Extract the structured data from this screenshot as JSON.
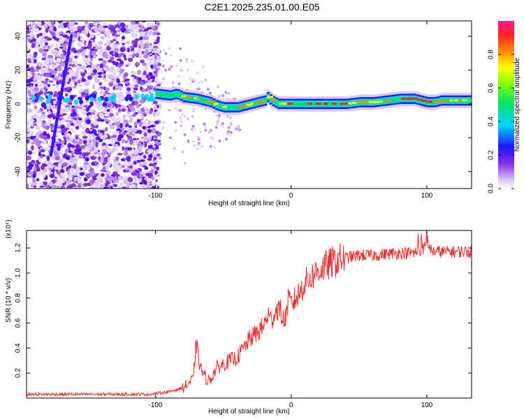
{
  "title": "C2E1.2025.235.01.00.E05",
  "chart_data": [
    {
      "type": "heatmap",
      "xlabel": "Height of straight line (km)",
      "ylabel": "Frequency (Hz)",
      "xlim": [
        -195,
        133
      ],
      "ylim": [
        -50,
        49
      ],
      "xticks": [
        -100,
        0,
        100
      ],
      "yticks": [
        40,
        20,
        0,
        -20,
        -40
      ],
      "xtick_labels": [
        "-100",
        "0",
        "100"
      ],
      "ytick_labels": [
        "40",
        "20",
        "0",
        "-20",
        "-40"
      ],
      "colorbar": {
        "label": "Normalized spectral amplitude",
        "range": [
          0,
          1
        ],
        "ticks": [
          "0.0",
          "0.2",
          "0.4",
          "0.6",
          "0.8"
        ],
        "tick_values": [
          0.0,
          0.2,
          0.4,
          0.6,
          0.8
        ]
      },
      "ridge": {
        "x": [
          -100,
          -90,
          -85,
          -80,
          -70,
          -60,
          -55,
          -50,
          -40,
          -30,
          -20,
          -18,
          -15,
          -10,
          -5,
          0,
          10,
          20,
          30,
          40,
          50,
          60,
          70,
          80,
          90,
          95,
          100,
          105,
          110,
          120,
          133
        ],
        "y": [
          6,
          5,
          6,
          4,
          3,
          1,
          -1,
          -2,
          -2,
          0,
          2,
          4,
          2,
          0,
          0,
          0,
          0,
          0,
          0,
          0,
          1,
          1,
          2,
          3,
          3,
          2,
          1,
          1,
          2,
          2,
          2
        ]
      }
    },
    {
      "type": "line",
      "xlabel": "Height of straight line (km)",
      "ylabel": "SNR (10 * v/v)",
      "multiplier_label": "(x10⁴)",
      "xlim": [
        -195,
        133
      ],
      "ylim": [
        0,
        1.34
      ],
      "xticks": [
        -100,
        0,
        100
      ],
      "yticks": [
        0.2,
        0.4,
        0.6,
        0.8,
        1.0,
        1.2
      ],
      "xtick_labels": [
        "-100",
        "0",
        "100"
      ],
      "ytick_labels": [
        "0.2",
        "0.4",
        "0.6",
        "0.8",
        "1.0",
        "1.2"
      ],
      "color": "#e8312f",
      "series": [
        {
          "name": "SNR",
          "x": [
            -195,
            -150,
            -105,
            -90,
            -80,
            -72,
            -70,
            -68,
            -66,
            -63,
            -60,
            -55,
            -50,
            -45,
            -40,
            -35,
            -30,
            -25,
            -20,
            -17,
            -15,
            -12,
            -10,
            -8,
            -5,
            -2,
            0,
            5,
            10,
            15,
            20,
            30,
            40,
            50,
            60,
            70,
            80,
            90,
            95,
            98,
            100,
            105,
            110,
            120,
            133
          ],
          "y": [
            0.03,
            0.03,
            0.03,
            0.05,
            0.08,
            0.15,
            0.45,
            0.3,
            0.22,
            0.16,
            0.14,
            0.24,
            0.27,
            0.3,
            0.32,
            0.4,
            0.48,
            0.52,
            0.58,
            0.67,
            0.62,
            0.68,
            0.72,
            0.7,
            0.6,
            0.78,
            0.75,
            0.82,
            0.92,
            0.97,
            1.02,
            1.08,
            1.12,
            1.14,
            1.14,
            1.15,
            1.16,
            1.16,
            1.17,
            1.2,
            1.22,
            1.17,
            1.17,
            1.17,
            1.17
          ]
        }
      ]
    }
  ]
}
